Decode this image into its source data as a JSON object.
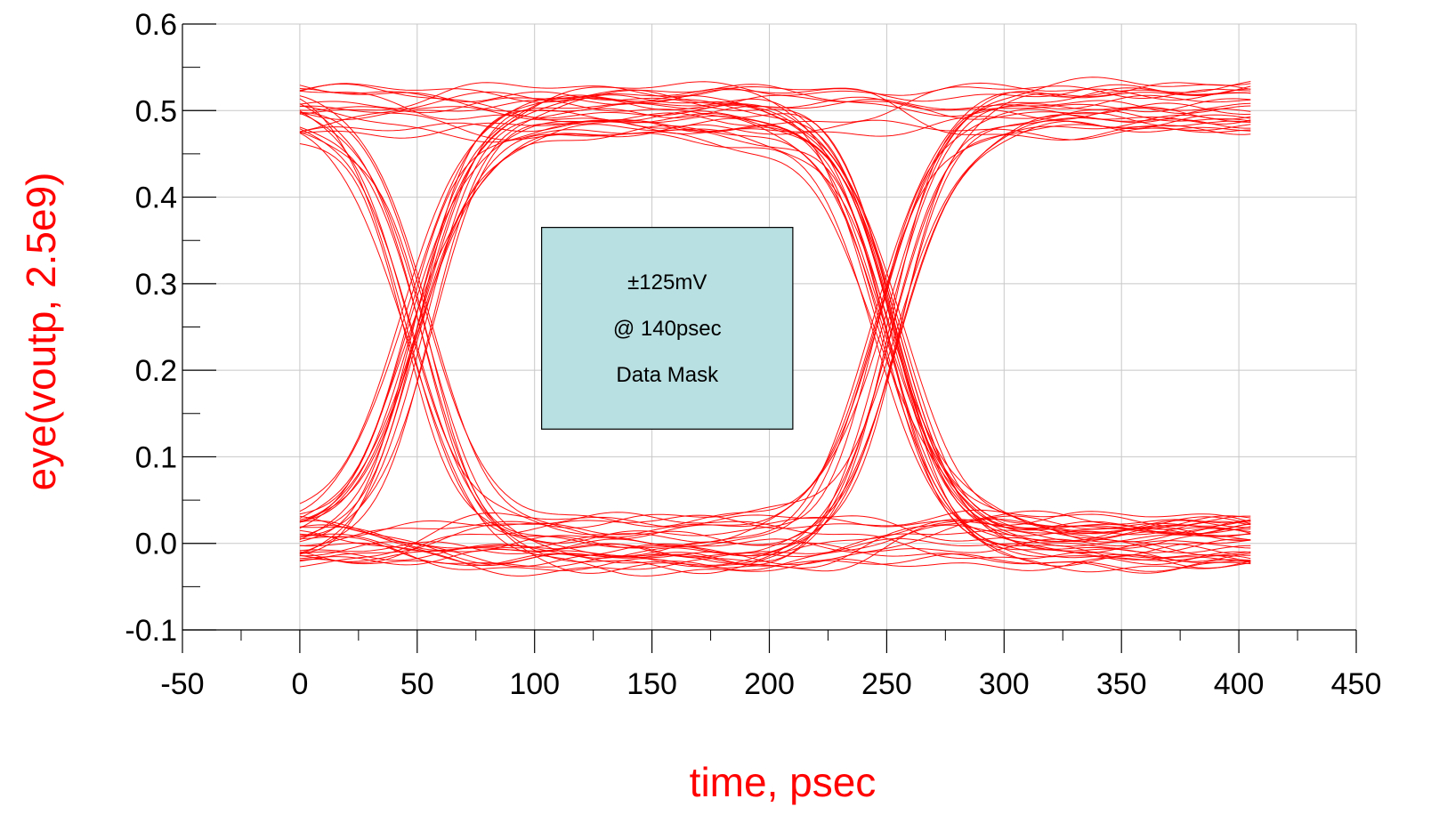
{
  "chart_data": {
    "type": "line",
    "subtype": "eye-diagram",
    "title": "",
    "xlabel": "time, psec",
    "ylabel": "eye(voutp, 2.5e9)",
    "xlim": [
      -50,
      450
    ],
    "ylim": [
      -0.1,
      0.6
    ],
    "x_ticks": [
      "-50",
      "0",
      "50",
      "100",
      "150",
      "200",
      "250",
      "300",
      "350",
      "400",
      "450"
    ],
    "y_ticks": [
      "0.6",
      "0.5",
      "0.4",
      "0.3",
      "0.2",
      "0.1",
      "0.0",
      "-0.1"
    ],
    "grid": true,
    "trace_color": "#ff0000",
    "label_color": "#ff0000",
    "unit_interval_psec": 400,
    "data_rate_hz": 2500000000.0,
    "levels": {
      "high": 0.5,
      "low": 0.0,
      "crossing": 0.25
    },
    "crossings_psec": [
      50,
      250
    ],
    "trace_x_range": [
      0,
      405
    ],
    "trace_count": 60,
    "envelope": {
      "high_band": [
        0.465,
        0.535
      ],
      "low_band": [
        -0.035,
        0.035
      ]
    },
    "mask": {
      "x_range": [
        103,
        210
      ],
      "y_range": [
        0.132,
        0.365
      ],
      "fill": "#b8dfe1",
      "lines": [
        "±125mV",
        "@ 140psec",
        "Data Mask"
      ]
    }
  }
}
